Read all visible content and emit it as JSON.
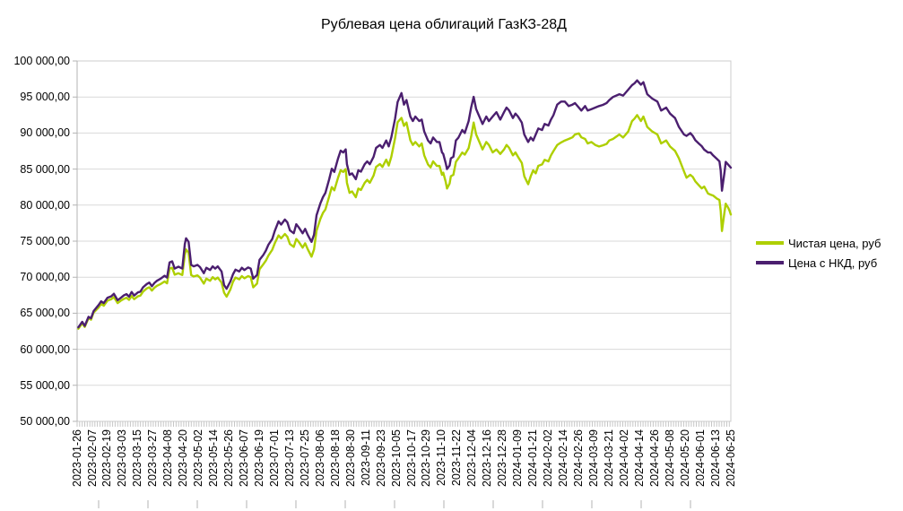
{
  "chart_data": {
    "type": "line",
    "title": "Рублевая цена облигаций ГазКЗ-28Д",
    "legend_position": "right",
    "grid": "horizontal",
    "y_axis": {
      "min": 50000,
      "max": 100000,
      "step": 5000,
      "tick_labels": [
        "100 000,00",
        "95 000,00",
        "90 000,00",
        "85 000,00",
        "80 000,00",
        "75 000,00",
        "70 000,00",
        "65 000,00",
        "60 000,00",
        "55 000,00",
        "50 000,00"
      ]
    },
    "x_axis": {
      "tick_interval_days": 12,
      "range_days": [
        0,
        516
      ],
      "tick_labels": [
        "2023-01-26",
        "2023-02-07",
        "2023-02-19",
        "2023-03-03",
        "2023-03-15",
        "2023-03-27",
        "2023-04-08",
        "2023-04-20",
        "2023-05-02",
        "2023-05-14",
        "2023-05-26",
        "2023-06-07",
        "2023-06-19",
        "2023-07-01",
        "2023-07-13",
        "2023-07-25",
        "2023-08-06",
        "2023-08-18",
        "2023-08-30",
        "2023-09-11",
        "2023-09-23",
        "2023-10-05",
        "2023-10-17",
        "2023-10-29",
        "2023-11-10",
        "2023-11-22",
        "2023-12-04",
        "2023-12-16",
        "2023-12-28",
        "2024-01-09",
        "2024-01-21",
        "2024-02-02",
        "2024-02-14",
        "2024-02-26",
        "2024-03-09",
        "2024-03-21",
        "2024-04-02",
        "2024-04-14",
        "2024-04-26",
        "2024-05-08",
        "2024-05-20",
        "2024-06-01",
        "2024-06-13",
        "2024-06-25"
      ]
    },
    "colors": {
      "gridline": "#d9d9d9",
      "border": "#cccccc",
      "axis": "#b3b3b3",
      "tick_band": "#c6c6c6",
      "text": "#000000"
    },
    "x_days": [
      1,
      4,
      6,
      9,
      11,
      13,
      17,
      19,
      21,
      24,
      27,
      29,
      32,
      35,
      37,
      39,
      41,
      43,
      45,
      48,
      50,
      52,
      55,
      57,
      59,
      61,
      63,
      66,
      69,
      71,
      73,
      75,
      77,
      80,
      83,
      85,
      86,
      88,
      90,
      92,
      95,
      97,
      100,
      102,
      105,
      107,
      109,
      111,
      114,
      116,
      118,
      121,
      123,
      125,
      128,
      130,
      132,
      135,
      137,
      139,
      142,
      144,
      147,
      149,
      151,
      154,
      156,
      159,
      161,
      164,
      166,
      168,
      171,
      173,
      175,
      178,
      180,
      182,
      185,
      187,
      189,
      192,
      194,
      196,
      199,
      201,
      203,
      206,
      208,
      210,
      212,
      213,
      215,
      217,
      220,
      222,
      224,
      227,
      229,
      231,
      234,
      236,
      239,
      241,
      244,
      246,
      248,
      251,
      253,
      256,
      258,
      260,
      263,
      265,
      267,
      270,
      272,
      274,
      277,
      279,
      281,
      284,
      286,
      288,
      289,
      291,
      292,
      294,
      295,
      297,
      299,
      301,
      304,
      306,
      309,
      311,
      313,
      315,
      318,
      320,
      323,
      325,
      328,
      331,
      334,
      337,
      339,
      341,
      344,
      346,
      348,
      351,
      353,
      356,
      358,
      360,
      362,
      364,
      367,
      369,
      372,
      374,
      376,
      379,
      382,
      385,
      388,
      391,
      393,
      396,
      398,
      401,
      403,
      406,
      409,
      412,
      415,
      418,
      420,
      423,
      428,
      431,
      435,
      438,
      440,
      442,
      445,
      447,
      450,
      454,
      458,
      461,
      465,
      468,
      472,
      475,
      479,
      481,
      484,
      486,
      488,
      491,
      493,
      495,
      498,
      500,
      502,
      505,
      507,
      508,
      509,
      511,
      512,
      514,
      515,
      516
    ],
    "series": [
      {
        "name": "Чистая цена, руб",
        "color": "#AECF00",
        "values": [
          62850,
          63600,
          63100,
          64300,
          64100,
          65100,
          65800,
          66300,
          66050,
          66750,
          66950,
          67250,
          66400,
          66800,
          67000,
          67150,
          66850,
          67400,
          66950,
          67350,
          67450,
          68000,
          68450,
          68600,
          68150,
          68550,
          68800,
          69050,
          69400,
          69150,
          71200,
          71300,
          70350,
          70550,
          70300,
          73100,
          73850,
          73400,
          70300,
          70100,
          70250,
          69950,
          69100,
          69800,
          69500,
          70000,
          69700,
          69950,
          69250,
          67850,
          67300,
          68300,
          69350,
          69950,
          69700,
          70150,
          69850,
          70150,
          70000,
          68600,
          69100,
          71100,
          71800,
          72300,
          73000,
          73800,
          74700,
          75800,
          75400,
          76000,
          75600,
          74600,
          74200,
          75300,
          74900,
          74100,
          74700,
          73900,
          72850,
          73850,
          76450,
          78100,
          78900,
          79400,
          81200,
          82500,
          82050,
          83800,
          84850,
          84600,
          85000,
          83100,
          81700,
          81900,
          81100,
          82300,
          82100,
          83100,
          83500,
          83100,
          84100,
          85300,
          85700,
          85300,
          86300,
          85500,
          86700,
          89300,
          91500,
          92100,
          91000,
          91460,
          89000,
          88350,
          88760,
          88140,
          88560,
          86900,
          85650,
          85240,
          86070,
          85440,
          85440,
          84210,
          84500,
          83200,
          82300,
          83000,
          84000,
          84200,
          86000,
          86500,
          87300,
          87000,
          87900,
          89500,
          91450,
          89800,
          88560,
          87730,
          88760,
          88350,
          87310,
          87730,
          87100,
          87730,
          88350,
          87940,
          86900,
          87310,
          86690,
          85860,
          83990,
          82900,
          83990,
          84830,
          84410,
          85450,
          85650,
          86280,
          86070,
          86900,
          87500,
          88350,
          88700,
          88970,
          89180,
          89400,
          89800,
          89950,
          89400,
          89180,
          88560,
          88760,
          88350,
          88140,
          88300,
          88500,
          88970,
          89180,
          89800,
          89380,
          90210,
          91660,
          92000,
          92490,
          91670,
          92290,
          90840,
          90210,
          89800,
          88560,
          88970,
          88140,
          87520,
          86490,
          84700,
          83800,
          84200,
          83900,
          83300,
          82700,
          82330,
          82580,
          81600,
          81460,
          81330,
          80900,
          80710,
          79200,
          76400,
          79000,
          80200,
          79600,
          79200,
          78700
        ]
      },
      {
        "name": "Цена с НКД, руб",
        "color": "#4B1F6F",
        "values": [
          63050,
          63800,
          63250,
          64500,
          64300,
          65300,
          66150,
          66650,
          66400,
          67150,
          67350,
          67700,
          66800,
          67200,
          67500,
          67650,
          67300,
          67950,
          67450,
          67900,
          68000,
          68600,
          69050,
          69250,
          68750,
          69200,
          69500,
          69800,
          70200,
          69950,
          72050,
          72200,
          71200,
          71450,
          71200,
          74600,
          75400,
          74900,
          71700,
          71500,
          71700,
          71400,
          70550,
          71300,
          71000,
          71500,
          71200,
          71500,
          70800,
          68900,
          68400,
          69400,
          70400,
          71050,
          70800,
          71300,
          71000,
          71350,
          71200,
          69800,
          70300,
          72400,
          73100,
          73700,
          74500,
          75300,
          76400,
          77750,
          77300,
          78000,
          77600,
          76500,
          76100,
          77350,
          76900,
          76100,
          76700,
          75900,
          74900,
          75900,
          78600,
          80250,
          81100,
          81700,
          83600,
          85050,
          84600,
          86480,
          87560,
          87300,
          87740,
          85670,
          84200,
          84400,
          83600,
          84840,
          84640,
          85670,
          86070,
          85670,
          86700,
          87940,
          88350,
          87940,
          88970,
          88150,
          89400,
          92000,
          94300,
          95550,
          93940,
          94580,
          92290,
          91670,
          92290,
          91670,
          91870,
          90210,
          88970,
          88560,
          89380,
          88760,
          88760,
          87310,
          87100,
          85800,
          85000,
          85500,
          86490,
          86700,
          88970,
          89380,
          90420,
          90000,
          91660,
          93530,
          95020,
          93320,
          92080,
          91250,
          92290,
          91660,
          92290,
          92900,
          91870,
          92900,
          93530,
          93120,
          92080,
          92700,
          92290,
          91450,
          89790,
          88760,
          89380,
          88970,
          89790,
          90630,
          90420,
          91250,
          91040,
          91870,
          92490,
          93940,
          94360,
          94360,
          93740,
          93940,
          94150,
          93530,
          93120,
          93740,
          93120,
          93320,
          93530,
          93740,
          93900,
          94170,
          94570,
          95000,
          95390,
          95200,
          96020,
          96640,
          96900,
          97300,
          96700,
          97050,
          95390,
          94780,
          94360,
          93120,
          93530,
          92700,
          92080,
          90840,
          89800,
          89600,
          90000,
          89600,
          89000,
          88500,
          88180,
          87700,
          87300,
          87300,
          86900,
          86400,
          86070,
          84800,
          82000,
          84500,
          86000,
          85600,
          85400,
          85200
        ]
      }
    ]
  }
}
